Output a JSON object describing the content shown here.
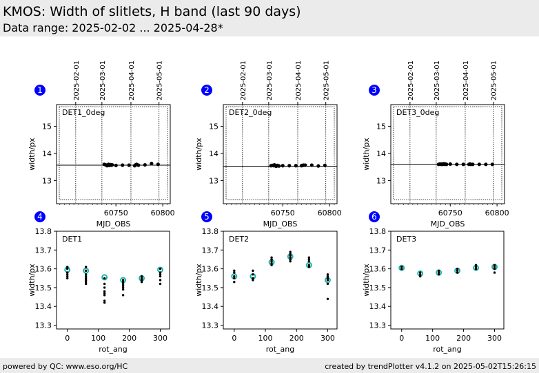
{
  "header": {
    "title": "KMOS: Width of slitlets, H band (last 90 days)",
    "subtitle": "Data range: 2025-02-02 ... 2025-04-28*"
  },
  "footer": {
    "left": "powered by QC: www.eso.org/HC",
    "right": "created by trendPlotter v4.1.2 on 2025-05-02T15:26:15"
  },
  "colors": {
    "badge": "#0000ff",
    "marker": "#000000",
    "avg_marker": "#20b2aa"
  },
  "chart_data": [
    {
      "type": "scatter",
      "panel_number": "1",
      "label": "DET1_0deg",
      "xlabel": "MJD_OBS",
      "ylabel": "width/px",
      "xlim": [
        60686.5,
        60808
      ],
      "ylim": [
        12.15,
        15.8
      ],
      "xticks": [
        60750,
        60800
      ],
      "yticks": [
        13,
        14,
        15
      ],
      "date_ticks": [
        {
          "label": "2025-02-01",
          "mjd": 60707
        },
        {
          "label": "2025-03-01",
          "mjd": 60735
        },
        {
          "label": "2025-04-01",
          "mjd": 60766
        },
        {
          "label": "2025-05-01",
          "mjd": 60796
        }
      ],
      "reference_line": 13.57,
      "points": {
        "x": [
          60737.5,
          60739,
          60740.5,
          60741,
          60742,
          60743,
          60744,
          60745,
          60746,
          60750,
          60757,
          60764,
          60770,
          60771,
          60772,
          60774,
          60781,
          60788,
          60795
        ],
        "y": [
          13.6,
          13.58,
          13.55,
          13.57,
          13.6,
          13.56,
          13.59,
          13.57,
          13.58,
          13.56,
          13.57,
          13.57,
          13.55,
          13.58,
          13.6,
          13.57,
          13.58,
          13.63,
          13.6
        ]
      }
    },
    {
      "type": "scatter",
      "panel_number": "2",
      "label": "DET2_0deg",
      "xlabel": "MJD_OBS",
      "ylabel": "width/px",
      "xlim": [
        60686.5,
        60808
      ],
      "ylim": [
        12.15,
        15.8
      ],
      "xticks": [
        60750,
        60800
      ],
      "yticks": [
        13,
        14,
        15
      ],
      "date_ticks": [
        {
          "label": "2025-02-01",
          "mjd": 60707
        },
        {
          "label": "2025-03-01",
          "mjd": 60735
        },
        {
          "label": "2025-04-01",
          "mjd": 60766
        },
        {
          "label": "2025-05-01",
          "mjd": 60796
        }
      ],
      "reference_line": 13.53,
      "points": {
        "x": [
          60737.5,
          60739,
          60740.5,
          60741,
          60742,
          60743,
          60744,
          60745,
          60746,
          60750,
          60757,
          60764,
          60770,
          60771,
          60772,
          60774,
          60781,
          60788,
          60795
        ],
        "y": [
          13.55,
          13.56,
          13.55,
          13.58,
          13.56,
          13.53,
          13.56,
          13.55,
          13.54,
          13.55,
          13.55,
          13.55,
          13.55,
          13.56,
          13.57,
          13.57,
          13.57,
          13.54,
          13.56
        ]
      }
    },
    {
      "type": "scatter",
      "panel_number": "3",
      "label": "DET3_0deg",
      "xlabel": "MJD_OBS",
      "ylabel": "width/px",
      "xlim": [
        60686.5,
        60808
      ],
      "ylim": [
        12.15,
        15.8
      ],
      "xticks": [
        60750,
        60800
      ],
      "yticks": [
        13,
        14,
        15
      ],
      "date_ticks": [
        {
          "label": "2025-02-01",
          "mjd": 60707
        },
        {
          "label": "2025-03-01",
          "mjd": 60735
        },
        {
          "label": "2025-04-01",
          "mjd": 60766
        },
        {
          "label": "2025-05-01",
          "mjd": 60796
        }
      ],
      "reference_line": 13.59,
      "points": {
        "x": [
          60737.5,
          60739,
          60740.5,
          60741,
          60742,
          60743,
          60744,
          60745,
          60746,
          60750,
          60757,
          60764,
          60770,
          60771,
          60772,
          60774,
          60781,
          60788,
          60795
        ],
        "y": [
          13.6,
          13.61,
          13.6,
          13.61,
          13.6,
          13.62,
          13.6,
          13.61,
          13.6,
          13.61,
          13.6,
          13.6,
          13.6,
          13.61,
          13.6,
          13.6,
          13.6,
          13.6,
          13.6
        ]
      }
    },
    {
      "type": "scatter",
      "panel_number": "4",
      "label": "DET1",
      "xlabel": "rot_ang",
      "ylabel": "width/px",
      "xlim": [
        -35,
        330
      ],
      "ylim": [
        13.28,
        13.8
      ],
      "xticks": [
        0,
        100,
        200,
        300
      ],
      "yticks": [
        13.3,
        13.4,
        13.5,
        13.6,
        13.7,
        13.8
      ],
      "points": {
        "x": [
          0,
          0,
          0,
          0,
          0,
          0,
          60,
          60,
          60,
          60,
          60,
          60,
          60,
          60,
          120,
          120,
          120,
          120,
          120,
          120,
          120,
          120,
          180,
          180,
          180,
          180,
          180,
          180,
          180,
          240,
          240,
          240,
          240,
          300,
          300,
          300,
          300,
          300,
          300
        ],
        "y": [
          13.61,
          13.6,
          13.58,
          13.57,
          13.56,
          13.55,
          13.61,
          13.59,
          13.57,
          13.56,
          13.55,
          13.54,
          13.53,
          13.52,
          13.55,
          13.52,
          13.5,
          13.48,
          13.47,
          13.46,
          13.43,
          13.42,
          13.54,
          13.53,
          13.52,
          13.51,
          13.5,
          13.49,
          13.46,
          13.56,
          13.55,
          13.54,
          13.53,
          13.6,
          13.58,
          13.57,
          13.56,
          13.54,
          13.52
        ]
      },
      "averages": {
        "x": [
          0,
          60,
          120,
          180,
          240,
          300
        ],
        "y": [
          13.595,
          13.59,
          13.555,
          13.54,
          13.55,
          13.595
        ]
      }
    },
    {
      "type": "scatter",
      "panel_number": "5",
      "label": "DET2",
      "xlabel": "rot_ang",
      "ylabel": "width/px",
      "xlim": [
        -35,
        330
      ],
      "ylim": [
        13.28,
        13.8
      ],
      "xticks": [
        0,
        100,
        200,
        300
      ],
      "yticks": [
        13.3,
        13.4,
        13.5,
        13.6,
        13.7,
        13.8
      ],
      "points": {
        "x": [
          0,
          0,
          0,
          0,
          0,
          60,
          60,
          60,
          60,
          120,
          120,
          120,
          120,
          120,
          180,
          180,
          180,
          180,
          180,
          180,
          240,
          240,
          240,
          240,
          240,
          300,
          300,
          300,
          300,
          300,
          300
        ],
        "y": [
          13.59,
          13.58,
          13.56,
          13.55,
          13.53,
          13.59,
          13.57,
          13.55,
          13.54,
          13.66,
          13.65,
          13.64,
          13.63,
          13.62,
          13.69,
          13.68,
          13.67,
          13.66,
          13.65,
          13.64,
          13.66,
          13.65,
          13.64,
          13.62,
          13.61,
          13.57,
          13.56,
          13.55,
          13.54,
          13.52,
          13.44
        ]
      },
      "averages": {
        "x": [
          0,
          60,
          120,
          180,
          240,
          300
        ],
        "y": [
          13.56,
          13.56,
          13.635,
          13.665,
          13.62,
          13.54
        ]
      }
    },
    {
      "type": "scatter",
      "panel_number": "6",
      "label": "DET3",
      "xlabel": "rot_ang",
      "ylabel": "width/px",
      "xlim": [
        -35,
        330
      ],
      "ylim": [
        13.28,
        13.8
      ],
      "xticks": [
        0,
        100,
        200,
        300
      ],
      "yticks": [
        13.3,
        13.4,
        13.5,
        13.6,
        13.7,
        13.8
      ],
      "points": {
        "x": [
          0,
          0,
          0,
          60,
          60,
          60,
          120,
          120,
          120,
          180,
          180,
          180,
          240,
          240,
          240,
          240,
          300,
          300,
          300,
          300
        ],
        "y": [
          13.61,
          13.6,
          13.6,
          13.58,
          13.57,
          13.56,
          13.59,
          13.58,
          13.57,
          13.6,
          13.59,
          13.58,
          13.62,
          13.61,
          13.6,
          13.6,
          13.62,
          13.61,
          13.6,
          13.58
        ]
      },
      "averages": {
        "x": [
          0,
          60,
          120,
          180,
          240,
          300
        ],
        "y": [
          13.605,
          13.575,
          13.58,
          13.59,
          13.605,
          13.61
        ]
      }
    }
  ]
}
